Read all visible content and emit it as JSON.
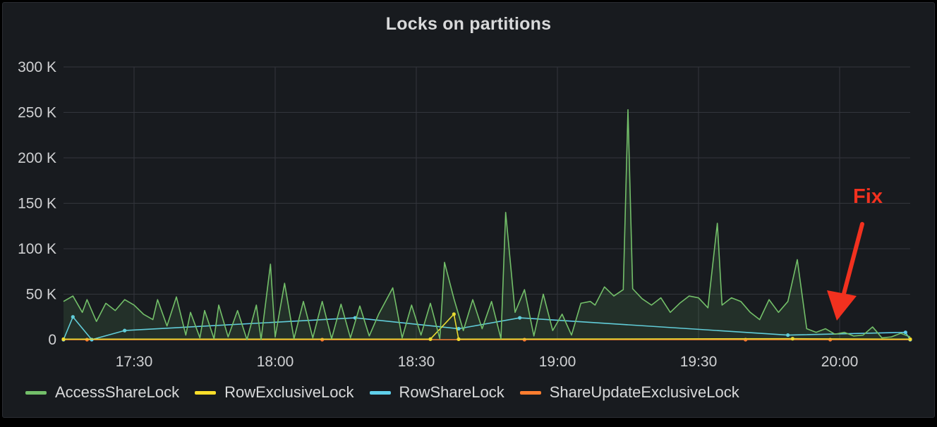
{
  "panel": {
    "title": "Locks on partitions"
  },
  "chart_data": {
    "type": "line",
    "title": "Locks on partitions",
    "xlabel": "",
    "ylabel": "",
    "x_range": [
      "17:15",
      "20:15"
    ],
    "x_ticks": [
      "17:30",
      "18:00",
      "18:30",
      "19:00",
      "19:30",
      "20:00"
    ],
    "y_ticks": [
      "0",
      "50 K",
      "100 K",
      "150 K",
      "200 K",
      "250 K",
      "300 K"
    ],
    "ylim": [
      0,
      300000
    ],
    "grid": true,
    "legend_position": "bottom",
    "series": [
      {
        "name": "AccessShareLock",
        "color": "#73bf69",
        "fill": true,
        "points": [
          [
            "17:15",
            42000
          ],
          [
            "17:17",
            48000
          ],
          [
            "17:19",
            30000
          ],
          [
            "17:20",
            44000
          ],
          [
            "17:22",
            20000
          ],
          [
            "17:24",
            40000
          ],
          [
            "17:26",
            32000
          ],
          [
            "17:28",
            44000
          ],
          [
            "17:30",
            38000
          ],
          [
            "17:32",
            28000
          ],
          [
            "17:34",
            22000
          ],
          [
            "17:35",
            44000
          ],
          [
            "17:37",
            15000
          ],
          [
            "17:39",
            47000
          ],
          [
            "17:41",
            5000
          ],
          [
            "17:42",
            30000
          ],
          [
            "17:44",
            2000
          ],
          [
            "17:45",
            32000
          ],
          [
            "17:47",
            1000
          ],
          [
            "17:48",
            38000
          ],
          [
            "17:50",
            3000
          ],
          [
            "17:52",
            32000
          ],
          [
            "17:54",
            0
          ],
          [
            "17:56",
            38000
          ],
          [
            "17:57",
            0
          ],
          [
            "17:59",
            83000
          ],
          [
            "18:00",
            3000
          ],
          [
            "18:02",
            62000
          ],
          [
            "18:04",
            1000
          ],
          [
            "18:06",
            42000
          ],
          [
            "18:08",
            2000
          ],
          [
            "18:10",
            42000
          ],
          [
            "18:12",
            1000
          ],
          [
            "18:14",
            39000
          ],
          [
            "18:16",
            2000
          ],
          [
            "18:18",
            37000
          ],
          [
            "18:20",
            4000
          ],
          [
            "18:22",
            28000
          ],
          [
            "18:25",
            57000
          ],
          [
            "18:27",
            2000
          ],
          [
            "18:29",
            38000
          ],
          [
            "18:31",
            5000
          ],
          [
            "18:33",
            40000
          ],
          [
            "18:35",
            1000
          ],
          [
            "18:36",
            85000
          ],
          [
            "18:38",
            45000
          ],
          [
            "18:40",
            10000
          ],
          [
            "18:42",
            44000
          ],
          [
            "18:44",
            12000
          ],
          [
            "18:46",
            42000
          ],
          [
            "18:48",
            1000
          ],
          [
            "18:49",
            140000
          ],
          [
            "18:51",
            30000
          ],
          [
            "18:53",
            55000
          ],
          [
            "18:55",
            4000
          ],
          [
            "18:57",
            50000
          ],
          [
            "18:59",
            10000
          ],
          [
            "19:01",
            28000
          ],
          [
            "19:03",
            5000
          ],
          [
            "19:05",
            40000
          ],
          [
            "19:07",
            42000
          ],
          [
            "19:08",
            38000
          ],
          [
            "19:10",
            58000
          ],
          [
            "19:12",
            48000
          ],
          [
            "19:14",
            55000
          ],
          [
            "19:15",
            253000
          ],
          [
            "19:16",
            56000
          ],
          [
            "19:18",
            45000
          ],
          [
            "19:20",
            38000
          ],
          [
            "19:22",
            46000
          ],
          [
            "19:24",
            30000
          ],
          [
            "19:26",
            40000
          ],
          [
            "19:28",
            48000
          ],
          [
            "19:30",
            46000
          ],
          [
            "19:32",
            35000
          ],
          [
            "19:34",
            128000
          ],
          [
            "19:35",
            38000
          ],
          [
            "19:37",
            46000
          ],
          [
            "19:39",
            42000
          ],
          [
            "19:41",
            30000
          ],
          [
            "19:43",
            22000
          ],
          [
            "19:45",
            44000
          ],
          [
            "19:47",
            30000
          ],
          [
            "19:49",
            42000
          ],
          [
            "19:51",
            88000
          ],
          [
            "19:53",
            12000
          ],
          [
            "19:55",
            8000
          ],
          [
            "19:57",
            12000
          ],
          [
            "19:59",
            6000
          ],
          [
            "20:01",
            8000
          ],
          [
            "20:03",
            4000
          ],
          [
            "20:05",
            5000
          ],
          [
            "20:07",
            14000
          ],
          [
            "20:09",
            2000
          ],
          [
            "20:11",
            3000
          ],
          [
            "20:13",
            7000
          ],
          [
            "20:15",
            3000
          ]
        ]
      },
      {
        "name": "RowExclusiveLock",
        "color": "#fade2a",
        "fill": false,
        "points": [
          [
            "17:15",
            500
          ],
          [
            "18:33",
            600
          ],
          [
            "18:38",
            28000
          ],
          [
            "18:39",
            500
          ],
          [
            "19:50",
            1000
          ],
          [
            "20:15",
            500
          ]
        ]
      },
      {
        "name": "RowShareLock",
        "color": "#5fcfea",
        "fill": false,
        "points": [
          [
            "17:15",
            0
          ],
          [
            "17:17",
            25000
          ],
          [
            "17:21",
            0
          ],
          [
            "17:28",
            10000
          ],
          [
            "18:17",
            24000
          ],
          [
            "18:39",
            12000
          ],
          [
            "18:52",
            24000
          ],
          [
            "19:49",
            5000
          ],
          [
            "20:14",
            8000
          ],
          [
            "20:15",
            0
          ]
        ]
      },
      {
        "name": "ShareUpdateExclusiveLock",
        "color": "#ff7d2f",
        "fill": false,
        "points": [
          [
            "17:15",
            0
          ],
          [
            "17:20",
            0
          ],
          [
            "18:10",
            0
          ],
          [
            "18:53",
            0
          ],
          [
            "19:40",
            0
          ],
          [
            "19:58",
            0
          ],
          [
            "20:15",
            0
          ]
        ]
      }
    ],
    "annotations": [
      {
        "text": "Fix",
        "color": "#f2311f",
        "points_to": "20:00"
      }
    ]
  }
}
